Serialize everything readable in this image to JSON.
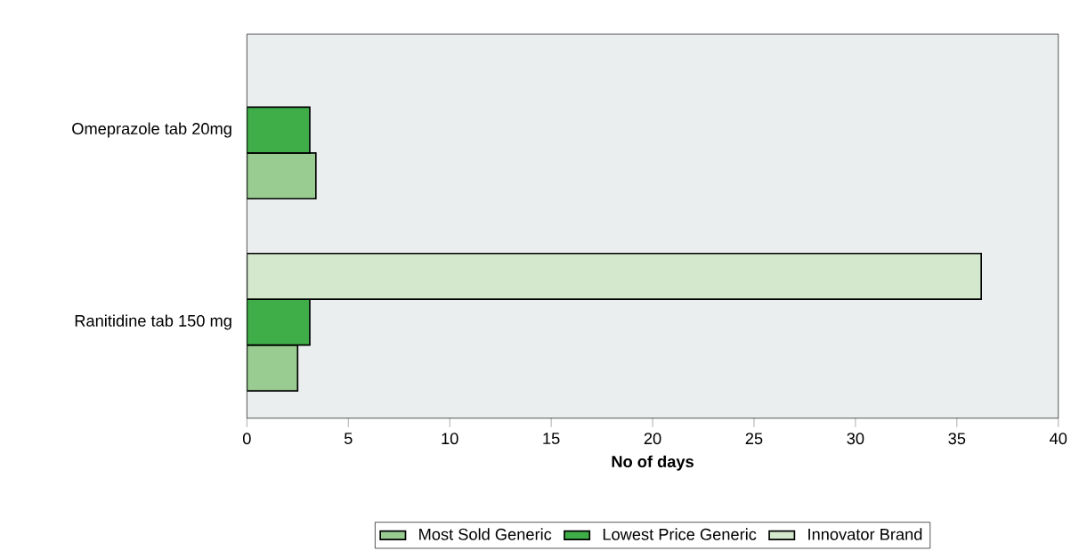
{
  "chart_data": {
    "type": "bar",
    "orientation": "horizontal",
    "xlabel": "No of days",
    "categories": [
      "Omeprazole tab 20mg",
      "Ranitidine tab 150 mg"
    ],
    "series": [
      {
        "name": "Most Sold Generic",
        "color": "#99cc91",
        "values": [
          3.4,
          2.5
        ]
      },
      {
        "name": "Lowest Price Generic",
        "color": "#3fae49",
        "values": [
          3.1,
          3.1
        ]
      },
      {
        "name": "Innovator Brand",
        "color": "#d4e8cd",
        "values": [
          null,
          36.2
        ]
      }
    ],
    "xlim": [
      0,
      40
    ],
    "xticks": [
      0,
      5,
      10,
      15,
      20,
      25,
      30,
      35,
      40
    ],
    "legend": "bottom"
  }
}
